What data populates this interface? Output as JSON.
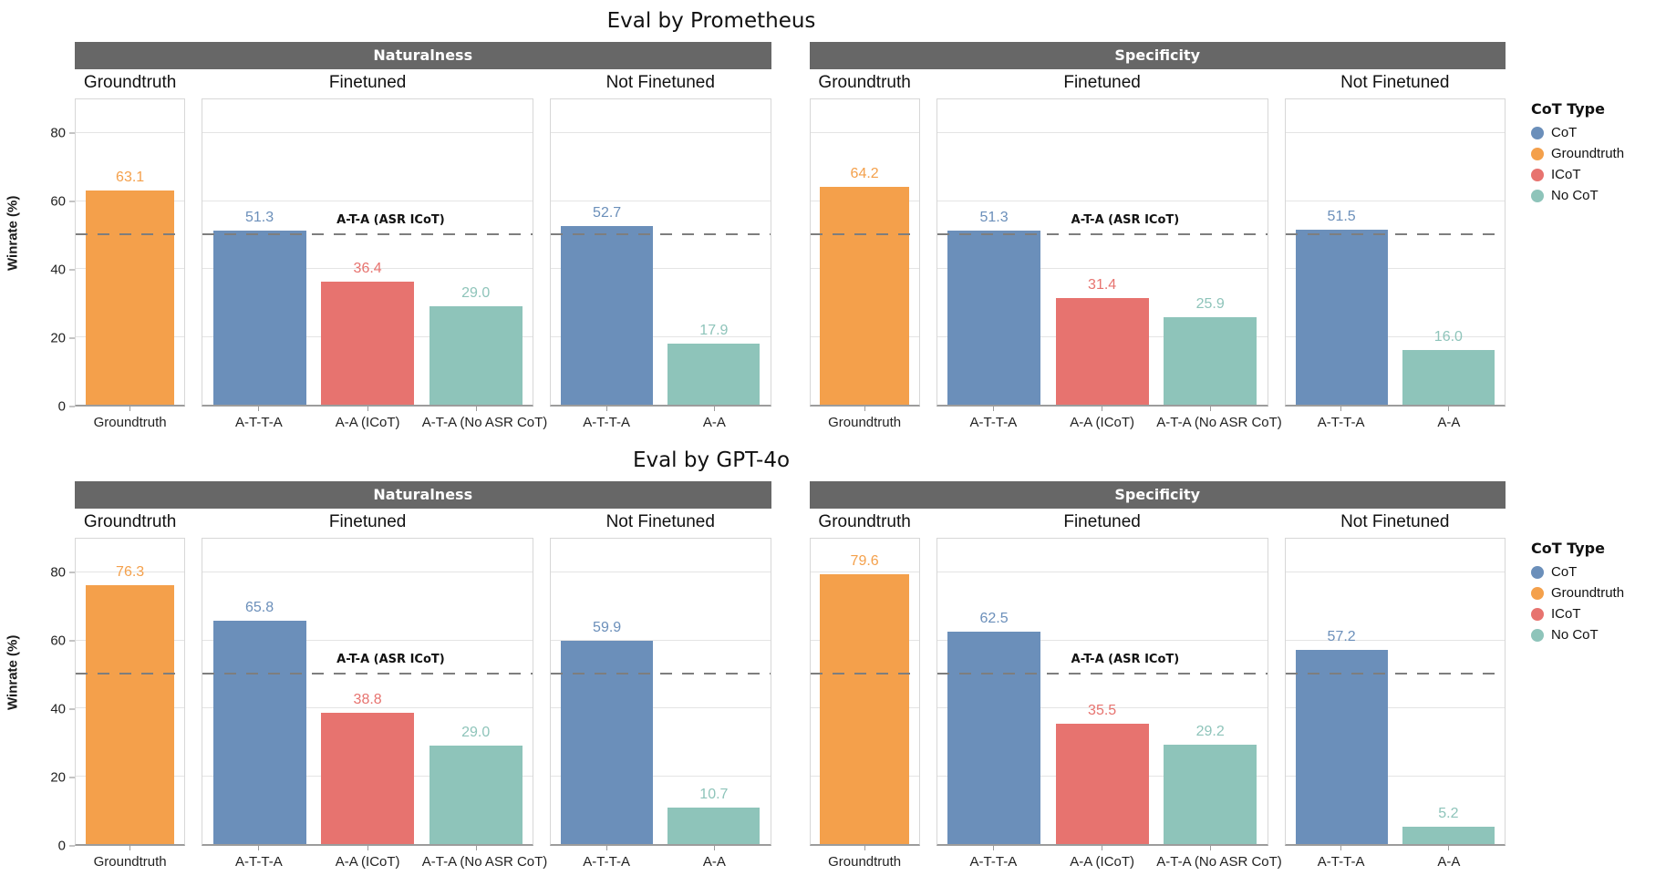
{
  "legend": {
    "title": "CoT Type",
    "position": "right",
    "items": [
      {
        "label": "CoT",
        "color": "#6b8fba"
      },
      {
        "label": "Groundtruth",
        "color": "#f4a04b"
      },
      {
        "label": "ICoT",
        "color": "#e7736f"
      },
      {
        "label": "No CoT",
        "color": "#8ec4ba"
      }
    ]
  },
  "axis": {
    "ylabel": "Winrate (%)",
    "ticks": [
      0,
      20,
      40,
      60,
      80
    ],
    "ymax": 90,
    "grid": true
  },
  "baseline": {
    "value": 50,
    "label": "A-T-A (ASR ICoT)",
    "style": "dashed"
  },
  "chart_data": [
    {
      "type": "bar",
      "title": "Eval by Prometheus",
      "ylabel": "Winrate (%)",
      "ylim": [
        0,
        90
      ],
      "facets": [
        {
          "title": "Naturalness",
          "panels": [
            {
              "subtitle": "Groundtruth",
              "show_baseline_label": false,
              "bars": [
                {
                  "category": "Groundtruth",
                  "value": 63.1,
                  "cot_type": "Groundtruth"
                }
              ]
            },
            {
              "subtitle": "Finetuned",
              "show_baseline_label": true,
              "bars": [
                {
                  "category": "A-T-T-A",
                  "value": 51.3,
                  "cot_type": "CoT"
                },
                {
                  "category": "A-A (ICoT)",
                  "value": 36.4,
                  "cot_type": "ICoT"
                },
                {
                  "category": "A-T-A (No ASR CoT)",
                  "value": 29.0,
                  "cot_type": "No CoT"
                }
              ]
            },
            {
              "subtitle": "Not Finetuned",
              "show_baseline_label": false,
              "bars": [
                {
                  "category": "A-T-T-A",
                  "value": 52.7,
                  "cot_type": "CoT"
                },
                {
                  "category": "A-A",
                  "value": 17.9,
                  "cot_type": "No CoT"
                }
              ]
            }
          ]
        },
        {
          "title": "Specificity",
          "panels": [
            {
              "subtitle": "Groundtruth",
              "show_baseline_label": false,
              "bars": [
                {
                  "category": "Groundtruth",
                  "value": 64.2,
                  "cot_type": "Groundtruth"
                }
              ]
            },
            {
              "subtitle": "Finetuned",
              "show_baseline_label": true,
              "bars": [
                {
                  "category": "A-T-T-A",
                  "value": 51.3,
                  "cot_type": "CoT"
                },
                {
                  "category": "A-A (ICoT)",
                  "value": 31.4,
                  "cot_type": "ICoT"
                },
                {
                  "category": "A-T-A (No ASR CoT)",
                  "value": 25.9,
                  "cot_type": "No CoT"
                }
              ]
            },
            {
              "subtitle": "Not Finetuned",
              "show_baseline_label": false,
              "bars": [
                {
                  "category": "A-T-T-A",
                  "value": 51.5,
                  "cot_type": "CoT"
                },
                {
                  "category": "A-A",
                  "value": 16.0,
                  "cot_type": "No CoT"
                }
              ]
            }
          ]
        }
      ]
    },
    {
      "type": "bar",
      "title": "Eval by GPT-4o",
      "ylabel": "Winrate (%)",
      "ylim": [
        0,
        90
      ],
      "facets": [
        {
          "title": "Naturalness",
          "panels": [
            {
              "subtitle": "Groundtruth",
              "show_baseline_label": false,
              "bars": [
                {
                  "category": "Groundtruth",
                  "value": 76.3,
                  "cot_type": "Groundtruth"
                }
              ]
            },
            {
              "subtitle": "Finetuned",
              "show_baseline_label": true,
              "bars": [
                {
                  "category": "A-T-T-A",
                  "value": 65.8,
                  "cot_type": "CoT"
                },
                {
                  "category": "A-A (ICoT)",
                  "value": 38.8,
                  "cot_type": "ICoT"
                },
                {
                  "category": "A-T-A (No ASR CoT)",
                  "value": 29.0,
                  "cot_type": "No CoT"
                }
              ]
            },
            {
              "subtitle": "Not Finetuned",
              "show_baseline_label": false,
              "bars": [
                {
                  "category": "A-T-T-A",
                  "value": 59.9,
                  "cot_type": "CoT"
                },
                {
                  "category": "A-A",
                  "value": 10.7,
                  "cot_type": "No CoT"
                }
              ]
            }
          ]
        },
        {
          "title": "Specificity",
          "panels": [
            {
              "subtitle": "Groundtruth",
              "show_baseline_label": false,
              "bars": [
                {
                  "category": "Groundtruth",
                  "value": 79.6,
                  "cot_type": "Groundtruth"
                }
              ]
            },
            {
              "subtitle": "Finetuned",
              "show_baseline_label": true,
              "bars": [
                {
                  "category": "A-T-T-A",
                  "value": 62.5,
                  "cot_type": "CoT"
                },
                {
                  "category": "A-A (ICoT)",
                  "value": 35.5,
                  "cot_type": "ICoT"
                },
                {
                  "category": "A-T-A (No ASR CoT)",
                  "value": 29.2,
                  "cot_type": "No CoT"
                }
              ]
            },
            {
              "subtitle": "Not Finetuned",
              "show_baseline_label": false,
              "bars": [
                {
                  "category": "A-T-T-A",
                  "value": 57.2,
                  "cot_type": "CoT"
                },
                {
                  "category": "A-A",
                  "value": 5.2,
                  "cot_type": "No CoT"
                }
              ]
            }
          ]
        }
      ]
    }
  ]
}
